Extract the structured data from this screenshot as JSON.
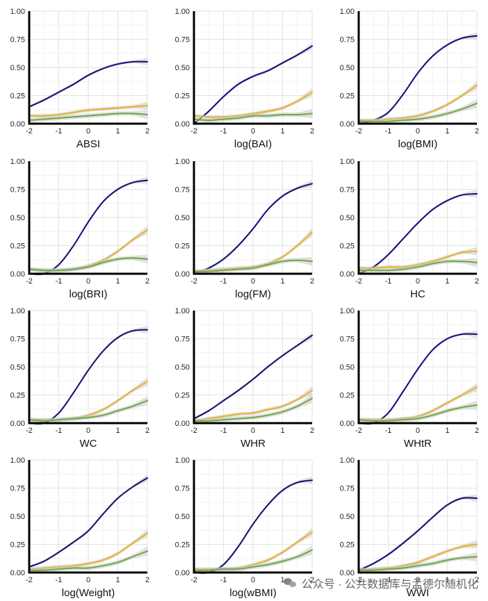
{
  "watermark": "公众号 · 公共数据库与孟德尔随机化",
  "colors": {
    "blue": "#15157a",
    "orange": "#e8b32e",
    "green": "#6fa84a",
    "band": "#c8c8c8"
  },
  "chart_data": [
    {
      "type": "line",
      "xlabel": "ABSI",
      "x": [
        -2,
        -1.5,
        -1,
        -0.5,
        0,
        0.5,
        1,
        1.5,
        2
      ],
      "xlim": [
        -2,
        2
      ],
      "ylim": [
        0,
        1
      ],
      "yticks": [
        "0.00",
        "0.25",
        "0.50",
        "0.75",
        "1.00"
      ],
      "xticks": [
        "-2",
        "-1",
        "0",
        "1",
        "2"
      ],
      "series": [
        {
          "color": "blue",
          "values": [
            0.15,
            0.21,
            0.28,
            0.35,
            0.43,
            0.49,
            0.53,
            0.55,
            0.55
          ]
        },
        {
          "color": "orange",
          "values": [
            0.07,
            0.07,
            0.08,
            0.1,
            0.12,
            0.13,
            0.14,
            0.15,
            0.16
          ]
        },
        {
          "color": "green",
          "values": [
            0.03,
            0.04,
            0.05,
            0.06,
            0.07,
            0.08,
            0.09,
            0.09,
            0.08
          ]
        }
      ]
    },
    {
      "type": "line",
      "xlabel": "log(BAI)",
      "x": [
        -2,
        -1.5,
        -1,
        -0.5,
        0,
        0.5,
        1,
        1.5,
        2
      ],
      "xlim": [
        -2,
        2
      ],
      "ylim": [
        0,
        1
      ],
      "yticks": [
        "0.00",
        "0.25",
        "0.50",
        "0.75",
        "1.00"
      ],
      "xticks": [
        "-2",
        "-1",
        "0",
        "1",
        "2"
      ],
      "series": [
        {
          "color": "blue",
          "values": [
            0.0,
            0.11,
            0.24,
            0.35,
            0.42,
            0.47,
            0.54,
            0.61,
            0.69
          ]
        },
        {
          "color": "orange",
          "values": [
            0.07,
            0.06,
            0.06,
            0.07,
            0.09,
            0.11,
            0.14,
            0.2,
            0.28
          ]
        },
        {
          "color": "green",
          "values": [
            0.04,
            0.03,
            0.04,
            0.05,
            0.07,
            0.07,
            0.08,
            0.08,
            0.09
          ]
        }
      ]
    },
    {
      "type": "line",
      "xlabel": "log(BMI)",
      "x": [
        -2,
        -1.5,
        -1,
        -0.5,
        0,
        0.5,
        1,
        1.5,
        2
      ],
      "xlim": [
        -2,
        2
      ],
      "ylim": [
        0,
        1
      ],
      "yticks": [
        "0.00",
        "0.25",
        "0.50",
        "0.75",
        "1.00"
      ],
      "xticks": [
        "-2",
        "-1",
        "0",
        "1",
        "2"
      ],
      "series": [
        {
          "color": "blue",
          "values": [
            0.0,
            0.03,
            0.1,
            0.26,
            0.45,
            0.6,
            0.7,
            0.76,
            0.78
          ]
        },
        {
          "color": "orange",
          "values": [
            0.03,
            0.03,
            0.04,
            0.05,
            0.07,
            0.11,
            0.17,
            0.25,
            0.34
          ]
        },
        {
          "color": "green",
          "values": [
            0.02,
            0.02,
            0.02,
            0.03,
            0.04,
            0.06,
            0.09,
            0.13,
            0.18
          ]
        }
      ]
    },
    {
      "type": "line",
      "xlabel": "log(BRI)",
      "x": [
        -2,
        -1.5,
        -1,
        -0.5,
        0,
        0.5,
        1,
        1.5,
        2
      ],
      "xlim": [
        -2,
        2
      ],
      "ylim": [
        0,
        1
      ],
      "yticks": [
        "0.00",
        "0.25",
        "0.50",
        "0.75",
        "1.00"
      ],
      "xticks": [
        "-2",
        "-1",
        "0",
        "1",
        "2"
      ],
      "series": [
        {
          "color": "blue",
          "values": [
            0.0,
            0.0,
            0.08,
            0.25,
            0.46,
            0.64,
            0.75,
            0.81,
            0.83
          ]
        },
        {
          "color": "orange",
          "values": [
            0.04,
            0.03,
            0.03,
            0.04,
            0.07,
            0.12,
            0.2,
            0.3,
            0.39
          ]
        },
        {
          "color": "green",
          "values": [
            0.04,
            0.03,
            0.03,
            0.04,
            0.06,
            0.1,
            0.13,
            0.14,
            0.13
          ]
        }
      ]
    },
    {
      "type": "line",
      "xlabel": "log(FM)",
      "x": [
        -2,
        -1.5,
        -1,
        -0.5,
        0,
        0.5,
        1,
        1.5,
        2
      ],
      "xlim": [
        -2,
        2
      ],
      "ylim": [
        0,
        1
      ],
      "yticks": [
        "0.00",
        "0.25",
        "0.50",
        "0.75",
        "1.00"
      ],
      "xticks": [
        "-2",
        "-1",
        "0",
        "1",
        "2"
      ],
      "series": [
        {
          "color": "blue",
          "values": [
            0.0,
            0.05,
            0.13,
            0.25,
            0.4,
            0.57,
            0.69,
            0.76,
            0.8
          ]
        },
        {
          "color": "orange",
          "values": [
            0.02,
            0.03,
            0.04,
            0.05,
            0.06,
            0.09,
            0.15,
            0.25,
            0.37
          ]
        },
        {
          "color": "green",
          "values": [
            0.02,
            0.02,
            0.03,
            0.04,
            0.05,
            0.08,
            0.11,
            0.12,
            0.11
          ]
        }
      ]
    },
    {
      "type": "line",
      "xlabel": "HC",
      "x": [
        -2,
        -1.5,
        -1,
        -0.5,
        0,
        0.5,
        1,
        1.5,
        2
      ],
      "xlim": [
        -2,
        2
      ],
      "ylim": [
        0,
        1
      ],
      "yticks": [
        "0.00",
        "0.25",
        "0.50",
        "0.75",
        "1.00"
      ],
      "xticks": [
        "-2",
        "-1",
        "0",
        "1",
        "2"
      ],
      "series": [
        {
          "color": "blue",
          "values": [
            0.0,
            0.06,
            0.17,
            0.31,
            0.45,
            0.57,
            0.65,
            0.7,
            0.71
          ]
        },
        {
          "color": "orange",
          "values": [
            0.05,
            0.05,
            0.06,
            0.06,
            0.08,
            0.11,
            0.15,
            0.19,
            0.2
          ]
        },
        {
          "color": "green",
          "values": [
            0.03,
            0.03,
            0.03,
            0.04,
            0.06,
            0.09,
            0.11,
            0.11,
            0.1
          ]
        }
      ]
    },
    {
      "type": "line",
      "xlabel": "WC",
      "x": [
        -2,
        -1.5,
        -1,
        -0.5,
        0,
        0.5,
        1,
        1.5,
        2
      ],
      "xlim": [
        -2,
        2
      ],
      "ylim": [
        0,
        1
      ],
      "yticks": [
        "0.00",
        "0.25",
        "0.50",
        "0.75",
        "1.00"
      ],
      "xticks": [
        "-2",
        "-1",
        "0",
        "1",
        "2"
      ],
      "series": [
        {
          "color": "blue",
          "values": [
            0.0,
            0.0,
            0.09,
            0.27,
            0.47,
            0.64,
            0.76,
            0.82,
            0.83
          ]
        },
        {
          "color": "orange",
          "values": [
            0.03,
            0.03,
            0.03,
            0.04,
            0.07,
            0.12,
            0.2,
            0.29,
            0.37
          ]
        },
        {
          "color": "green",
          "values": [
            0.03,
            0.02,
            0.03,
            0.04,
            0.05,
            0.07,
            0.11,
            0.15,
            0.2
          ]
        }
      ]
    },
    {
      "type": "line",
      "xlabel": "WHR",
      "x": [
        -2,
        -1.5,
        -1,
        -0.5,
        0,
        0.5,
        1,
        1.5,
        2
      ],
      "xlim": [
        -2,
        2
      ],
      "ylim": [
        0,
        1
      ],
      "yticks": [
        "0.00",
        "0.25",
        "0.50",
        "0.75",
        "1.00"
      ],
      "xticks": [
        "-2",
        "-1",
        "0",
        "1",
        "2"
      ],
      "series": [
        {
          "color": "blue",
          "values": [
            0.04,
            0.11,
            0.2,
            0.29,
            0.39,
            0.5,
            0.6,
            0.69,
            0.78
          ]
        },
        {
          "color": "orange",
          "values": [
            0.02,
            0.04,
            0.06,
            0.08,
            0.09,
            0.12,
            0.15,
            0.21,
            0.29
          ]
        },
        {
          "color": "green",
          "values": [
            0.02,
            0.02,
            0.03,
            0.04,
            0.05,
            0.07,
            0.1,
            0.15,
            0.22
          ]
        }
      ]
    },
    {
      "type": "line",
      "xlabel": "WHtR",
      "x": [
        -2,
        -1.5,
        -1,
        -0.5,
        0,
        0.5,
        1,
        1.5,
        2
      ],
      "xlim": [
        -2,
        2
      ],
      "ylim": [
        0,
        1
      ],
      "yticks": [
        "0.00",
        "0.25",
        "0.50",
        "0.75",
        "1.00"
      ],
      "xticks": [
        "-2",
        "-1",
        "0",
        "1",
        "2"
      ],
      "series": [
        {
          "color": "blue",
          "values": [
            0.0,
            0.0,
            0.09,
            0.28,
            0.48,
            0.65,
            0.75,
            0.79,
            0.79
          ]
        },
        {
          "color": "orange",
          "values": [
            0.03,
            0.03,
            0.03,
            0.04,
            0.06,
            0.11,
            0.18,
            0.25,
            0.32
          ]
        },
        {
          "color": "green",
          "values": [
            0.03,
            0.02,
            0.02,
            0.03,
            0.04,
            0.07,
            0.11,
            0.14,
            0.16
          ]
        }
      ]
    },
    {
      "type": "line",
      "xlabel": "log(Weight)",
      "x": [
        -2,
        -1.5,
        -1,
        -0.5,
        0,
        0.5,
        1,
        1.5,
        2
      ],
      "xlim": [
        -2,
        2
      ],
      "ylim": [
        0,
        1
      ],
      "yticks": [
        "0.00",
        "0.25",
        "0.50",
        "0.75",
        "1.00"
      ],
      "xticks": [
        "-2",
        "-1",
        "0",
        "1",
        "2"
      ],
      "series": [
        {
          "color": "blue",
          "values": [
            0.05,
            0.1,
            0.18,
            0.27,
            0.37,
            0.52,
            0.66,
            0.76,
            0.84
          ]
        },
        {
          "color": "orange",
          "values": [
            0.03,
            0.04,
            0.05,
            0.06,
            0.08,
            0.11,
            0.17,
            0.26,
            0.35
          ]
        },
        {
          "color": "green",
          "values": [
            0.02,
            0.02,
            0.03,
            0.04,
            0.04,
            0.06,
            0.09,
            0.14,
            0.19
          ]
        }
      ]
    },
    {
      "type": "line",
      "xlabel": "log(wBMI)",
      "x": [
        -2,
        -1.5,
        -1,
        -0.5,
        0,
        0.5,
        1,
        1.5,
        2
      ],
      "xlim": [
        -2,
        2
      ],
      "ylim": [
        0,
        1
      ],
      "yticks": [
        "0.00",
        "0.25",
        "0.50",
        "0.75",
        "1.00"
      ],
      "xticks": [
        "-2",
        "-1",
        "0",
        "1",
        "2"
      ],
      "series": [
        {
          "color": "blue",
          "values": [
            0.0,
            0.0,
            0.07,
            0.23,
            0.43,
            0.6,
            0.73,
            0.8,
            0.82
          ]
        },
        {
          "color": "orange",
          "values": [
            0.03,
            0.03,
            0.03,
            0.04,
            0.07,
            0.11,
            0.18,
            0.27,
            0.36
          ]
        },
        {
          "color": "green",
          "values": [
            0.02,
            0.02,
            0.03,
            0.03,
            0.05,
            0.07,
            0.1,
            0.14,
            0.2
          ]
        }
      ]
    },
    {
      "type": "line",
      "xlabel": "WWI",
      "x": [
        -2,
        -1.5,
        -1,
        -0.5,
        0,
        0.5,
        1,
        1.5,
        2
      ],
      "xlim": [
        -2,
        2
      ],
      "ylim": [
        0,
        1
      ],
      "yticks": [
        "0.00",
        "0.25",
        "0.50",
        "0.75",
        "1.00"
      ],
      "xticks": [
        "-2",
        "-1",
        "0",
        "1",
        "2"
      ],
      "series": [
        {
          "color": "blue",
          "values": [
            0.02,
            0.08,
            0.16,
            0.26,
            0.37,
            0.49,
            0.6,
            0.66,
            0.66
          ]
        },
        {
          "color": "orange",
          "values": [
            0.02,
            0.03,
            0.04,
            0.06,
            0.09,
            0.14,
            0.19,
            0.23,
            0.25
          ]
        },
        {
          "color": "green",
          "values": [
            0.02,
            0.02,
            0.03,
            0.04,
            0.06,
            0.08,
            0.11,
            0.13,
            0.14
          ]
        }
      ]
    }
  ]
}
